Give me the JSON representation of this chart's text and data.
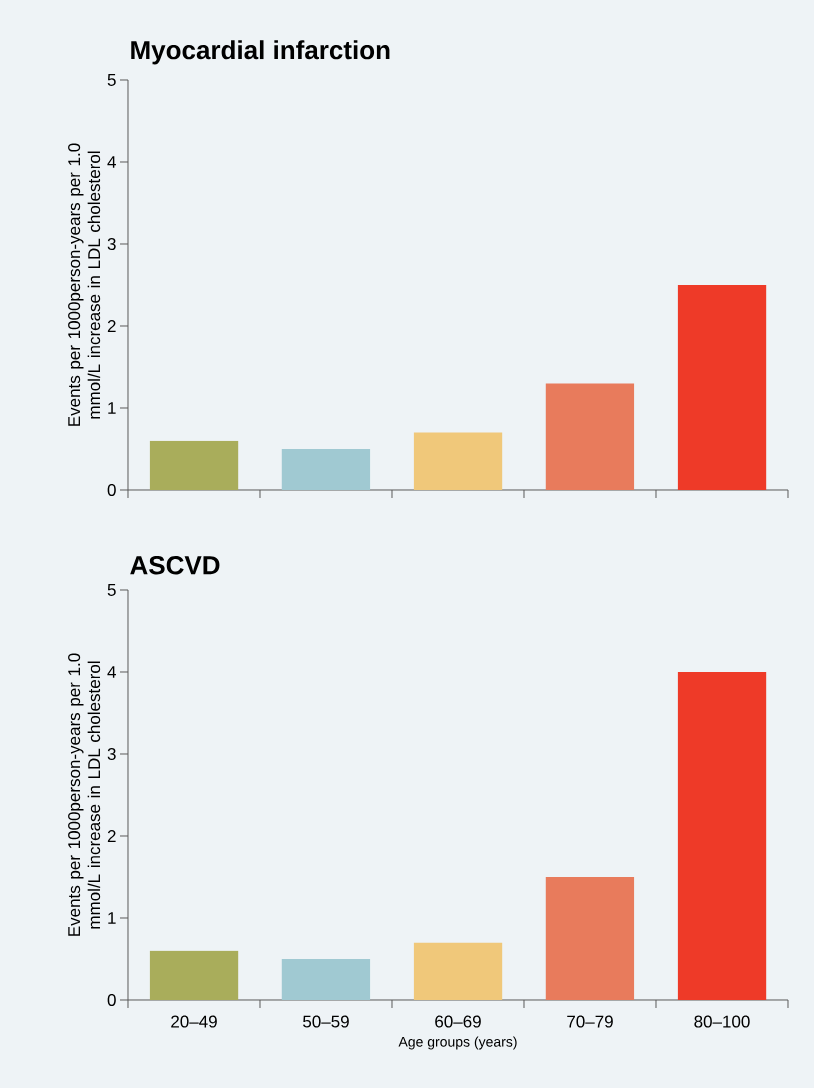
{
  "chart_data": [
    {
      "type": "bar",
      "title": "Myocardial infarction",
      "ylabel": "Events per 1000person-years per 1.0 mmol/L increase in LDL cholesterol",
      "categories": [
        null,
        null,
        null,
        null,
        null
      ],
      "values": [
        0.6,
        0.5,
        0.7,
        1.3,
        2.5
      ],
      "colors": [
        "#a9ad5b",
        "#a0c9d2",
        "#f0c87a",
        "#e87b5c",
        "#ee3a28"
      ],
      "ylim": [
        0,
        5
      ],
      "yticks": [
        0,
        1,
        2,
        3,
        4,
        5
      ]
    },
    {
      "type": "bar",
      "title": "ASCVD",
      "ylabel": "Events per 1000person-years per 1.0 mmol/L increase in LDL cholesterol",
      "xlabel": "Age groups (years)",
      "categories": [
        "20–49",
        "50–59",
        "60–69",
        "70–79",
        "80–100"
      ],
      "values": [
        0.6,
        0.5,
        0.7,
        1.5,
        4.0
      ],
      "colors": [
        "#a9ad5b",
        "#a0c9d2",
        "#f0c87a",
        "#e87b5c",
        "#ee3a28"
      ],
      "ylim": [
        0,
        5
      ],
      "yticks": [
        0,
        1,
        2,
        3,
        4,
        5
      ]
    }
  ]
}
